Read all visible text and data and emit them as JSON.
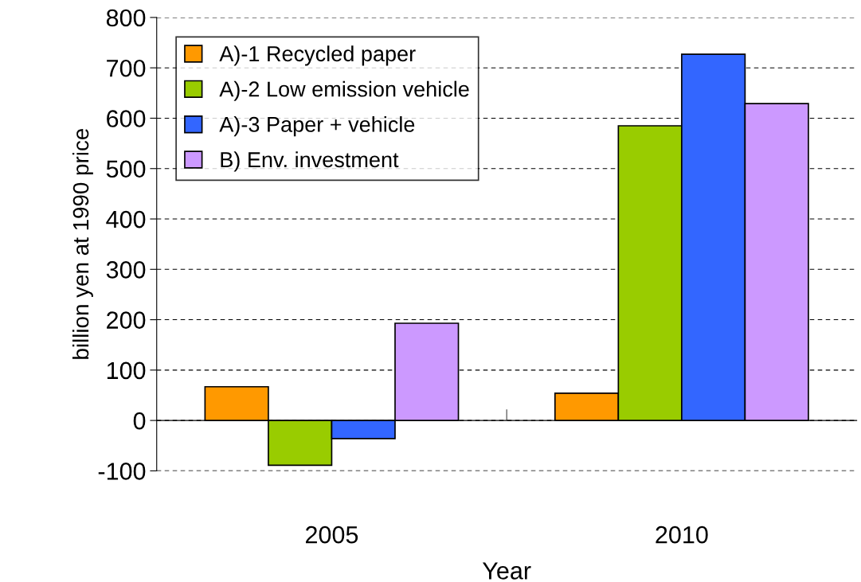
{
  "chart_data": {
    "type": "bar",
    "categories": [
      "2005",
      "2010"
    ],
    "series": [
      {
        "name": "A)-1 Recycled paper",
        "color": "#ff9900",
        "values": [
          67,
          54
        ]
      },
      {
        "name": "A)-2 Low emission vehicle",
        "color": "#99cc00",
        "values": [
          -89,
          585
        ]
      },
      {
        "name": "A)-3 Paper + vehicle",
        "color": "#3366ff",
        "values": [
          -36,
          727
        ]
      },
      {
        "name": "B) Env. investment",
        "color": "#cc99ff",
        "values": [
          193,
          629
        ]
      }
    ],
    "xlabel": "Year",
    "ylabel": "billion yen at 1990 price",
    "ylim": [
      -100,
      800
    ],
    "yticks": [
      -100,
      0,
      100,
      200,
      300,
      400,
      500,
      600,
      700,
      800
    ],
    "grid": "y",
    "legend": "top left"
  }
}
